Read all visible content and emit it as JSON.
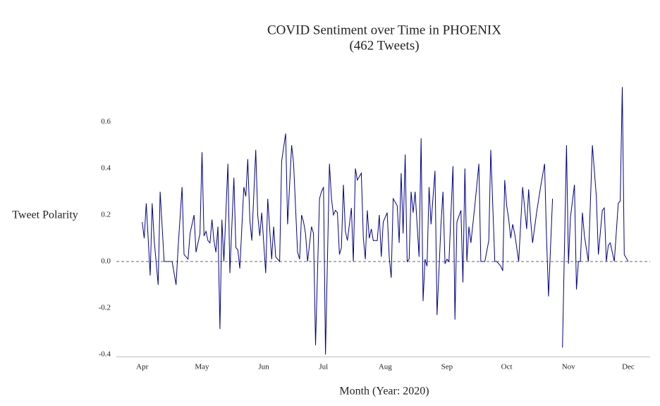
{
  "chart_data": {
    "type": "line",
    "title": "COVID Sentiment over Time in PHOENIX",
    "subtitle": "(462 Tweets)",
    "x_label": "Month (Year: 2020)",
    "y_label": "Tweet Polarity",
    "x": [
      92,
      93,
      94,
      96,
      97,
      98,
      100,
      101,
      103,
      104,
      106,
      107,
      109,
      110,
      112,
      113,
      115,
      116,
      118,
      119,
      121,
      122,
      123,
      124,
      125,
      126,
      127,
      128,
      129,
      130,
      131,
      132,
      133,
      135,
      136,
      138,
      139,
      140,
      141,
      143,
      144,
      145,
      146,
      147,
      149,
      150,
      151,
      152,
      154,
      155,
      157,
      158,
      159,
      161,
      162,
      164,
      165,
      167,
      168,
      170,
      171,
      172,
      173,
      174,
      175,
      177,
      178,
      179,
      181,
      182,
      183,
      184,
      186,
      187,
      188,
      189,
      190,
      191,
      192,
      193,
      194,
      195,
      197,
      198,
      199,
      200,
      202,
      203,
      204,
      205,
      206,
      207,
      208,
      210,
      211,
      212,
      213,
      215,
      216,
      217,
      218,
      220,
      221,
      222,
      223,
      224,
      225,
      226,
      227,
      228,
      229,
      231,
      232,
      233,
      234,
      235,
      236,
      237,
      239,
      240,
      242,
      243,
      244,
      245,
      246,
      248,
      249,
      250,
      252,
      253,
      254,
      255,
      256,
      257,
      259,
      260,
      261,
      262,
      264,
      266,
      267,
      269,
      270,
      272,
      273,
      274,
      275,
      276,
      277,
      278,
      279,
      280,
      281,
      283,
      285,
      286,
      287,
      288,
      290,
      292,
      294,
      295,
      296,
      298,
      300,
      303,
      305,
      306,
      307,
      309,
      310,
      311,
      312,
      313,
      314,
      316,
      318,
      320,
      321,
      323,
      324,
      325,
      326,
      327,
      329,
      331,
      332,
      333,
      334,
      336
    ],
    "series": [
      {
        "name": "Tweet Polarity",
        "color": "#00008b",
        "values": [
          0.17,
          0.1,
          0.25,
          -0.06,
          0.25,
          0.09,
          -0.1,
          0.3,
          0,
          0,
          0.0,
          0,
          -0.1,
          0.06,
          0.32,
          0.03,
          0.01,
          0.12,
          0.2,
          0.04,
          0.12,
          0.47,
          0.11,
          0.13,
          0.09,
          0.08,
          0.18,
          0.09,
          0.04,
          0.15,
          -0.29,
          0.18,
          0,
          0.42,
          -0.05,
          0.36,
          0.06,
          0.05,
          -0.03,
          0.32,
          0.28,
          0.44,
          0.18,
          0.09,
          0.48,
          0.2,
          0.11,
          0.21,
          -0.05,
          0.27,
          0.01,
          0.15,
          0.02,
          0,
          0.43,
          0.55,
          0.16,
          0.5,
          0.42,
          0.04,
          0.01,
          0.2,
          0.17,
          0.12,
          0.0,
          0.15,
          0.12,
          -0.36,
          0.27,
          0.3,
          0.32,
          -0.4,
          0.42,
          0.27,
          0.2,
          0.22,
          0.21,
          0.03,
          0.06,
          0.33,
          0.13,
          0.09,
          0.23,
          0.0,
          0.4,
          0.35,
          0.38,
          0.1,
          0.01,
          0.22,
          0.1,
          0.14,
          0.09,
          0.09,
          0.2,
          0.02,
          0.17,
          0.21,
          0.02,
          -0.07,
          0.27,
          0.24,
          0.08,
          0.38,
          0.12,
          0.46,
          0,
          0.01,
          0.3,
          0.21,
          0.3,
          0.02,
          0.53,
          -0.17,
          0.01,
          -0.02,
          0.32,
          0.16,
          0.39,
          -0.23,
          0.16,
          0.3,
          -0.01,
          0.01,
          0,
          0.41,
          -0.25,
          0.17,
          0.22,
          -0.09,
          0.4,
          0.0,
          0.15,
          0.08,
          0.24,
          0.33,
          0.42,
          0,
          0,
          0.09,
          0.48,
          0,
          0,
          -0.02,
          -0.04,
          0.35,
          0.24,
          0.18,
          0.1,
          0.16,
          0.12,
          0.06,
          0,
          0.32,
          0.14,
          0.31,
          0.18,
          0.08,
          0.21,
          0.32,
          0.42,
          0.1,
          -0.15,
          0.27,
          null,
          -0.37,
          0.5,
          -0.01,
          0.19,
          0.33,
          -0.12,
          0,
          0.0,
          0.21,
          0.11,
          0,
          0.5,
          0.28,
          0.03,
          0.22,
          0.23,
          0,
          0.07,
          0.08,
          0,
          0.25,
          0.26,
          0.75,
          0.03,
          0
        ]
      }
    ],
    "xlim": [
      79,
      347
    ],
    "xticks": [
      {
        "value": 92,
        "label": "Apr"
      },
      {
        "value": 122,
        "label": "May"
      },
      {
        "value": 153,
        "label": "Jun"
      },
      {
        "value": 183,
        "label": "Jul"
      },
      {
        "value": 214,
        "label": "Aug"
      },
      {
        "value": 245,
        "label": "Sep"
      },
      {
        "value": 275,
        "label": "Oct"
      },
      {
        "value": 306,
        "label": "Nov"
      },
      {
        "value": 336,
        "label": "Dec"
      }
    ],
    "ylim": [
      -0.41,
      0.78
    ],
    "yticks": [
      -0.4,
      -0.2,
      {
        "value": 0,
        "label": "0.0"
      },
      0.2,
      0.4,
      0.6
    ],
    "zero_line": true
  }
}
